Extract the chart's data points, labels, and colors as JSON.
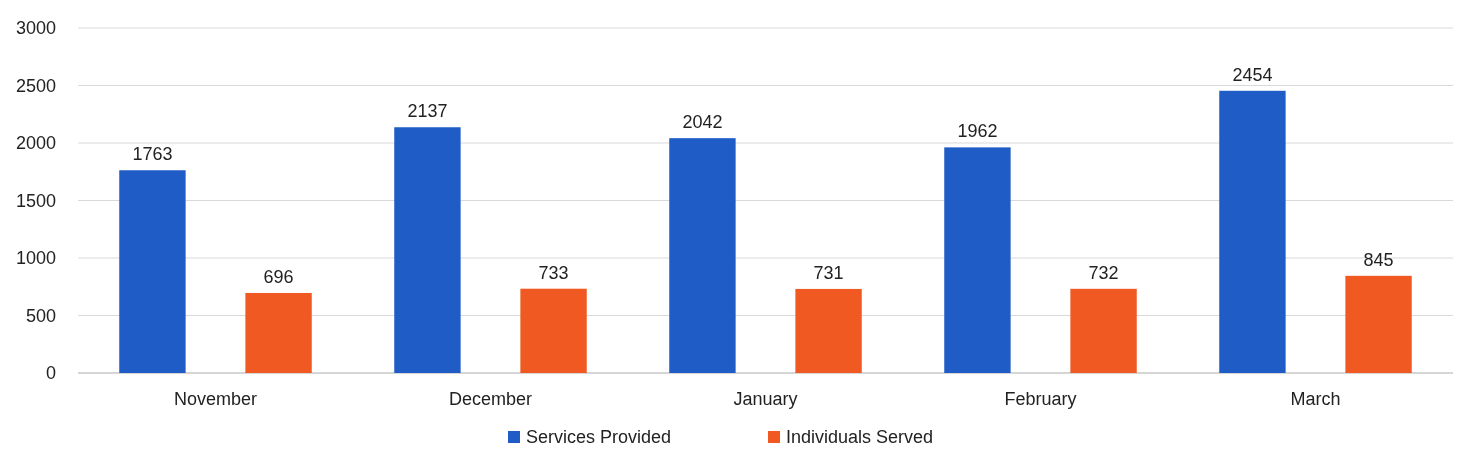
{
  "chart_data": {
    "type": "bar",
    "categories": [
      "November",
      "December",
      "January",
      "February",
      "March"
    ],
    "series": [
      {
        "name": "Services Provided",
        "color": "#1f5cc6",
        "values": [
          1763,
          2137,
          2042,
          1962,
          2454
        ]
      },
      {
        "name": "Individuals Served",
        "color": "#f05a22",
        "values": [
          696,
          733,
          731,
          732,
          845
        ]
      }
    ],
    "ylim": [
      0,
      3000
    ],
    "yticks": [
      0,
      500,
      1000,
      1500,
      2000,
      2500,
      3000
    ],
    "grid": "y",
    "legend": "bottom",
    "data_labels": true
  }
}
